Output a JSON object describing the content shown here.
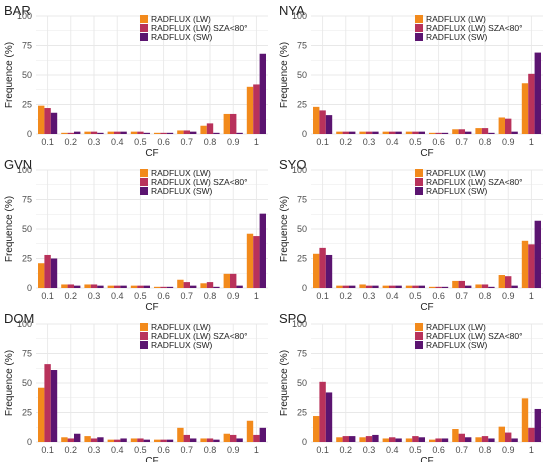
{
  "colors": {
    "lw": "#f28a1c",
    "lw_sza": "#b8325b",
    "sw": "#5b1470",
    "grid": "#e8e8e8",
    "text": "#4d4d4d"
  },
  "chart_data": [
    {
      "type": "bar",
      "title": "BAR",
      "xlabel": "CF",
      "ylabel": "Frequence (%)",
      "ylim": [
        0,
        100
      ],
      "yticks": [
        0,
        25,
        50,
        75,
        100
      ],
      "grid": true,
      "legend_position": "top-right",
      "categories": [
        "0.1",
        "0.2",
        "0.3",
        "0.4",
        "0.5",
        "0.6",
        "0.7",
        "0.8",
        "0.9",
        "1"
      ],
      "series": [
        {
          "name": "RADFLUX (LW)",
          "values": [
            24,
            1,
            2,
            2,
            2,
            1,
            3,
            7,
            17,
            40
          ]
        },
        {
          "name": "RADFLUX (LW) SZA<80°",
          "values": [
            22,
            1,
            2,
            2,
            2,
            1,
            3,
            9,
            17,
            42
          ]
        },
        {
          "name": "RADFLUX (SW)",
          "values": [
            18,
            2,
            1,
            2,
            1,
            1,
            2,
            1,
            1,
            68
          ]
        }
      ]
    },
    {
      "type": "bar",
      "title": "NYA",
      "xlabel": "CF",
      "ylabel": "Frequence (%)",
      "ylim": [
        0,
        100
      ],
      "yticks": [
        0,
        25,
        50,
        75,
        100
      ],
      "grid": true,
      "legend_position": "top-right",
      "categories": [
        "0.1",
        "0.2",
        "0.3",
        "0.4",
        "0.5",
        "0.6",
        "0.7",
        "0.8",
        "0.9",
        "1"
      ],
      "series": [
        {
          "name": "RADFLUX (LW)",
          "values": [
            23,
            2,
            2,
            2,
            2,
            1,
            4,
            5,
            14,
            43
          ]
        },
        {
          "name": "RADFLUX (LW) SZA<80°",
          "values": [
            20,
            2,
            2,
            2,
            2,
            1,
            4,
            5,
            13,
            51
          ]
        },
        {
          "name": "RADFLUX (SW)",
          "values": [
            16,
            2,
            2,
            2,
            2,
            1,
            2,
            1,
            2,
            69
          ]
        }
      ]
    },
    {
      "type": "bar",
      "title": "GVN",
      "xlabel": "CF",
      "ylabel": "Frequence (%)",
      "ylim": [
        0,
        100
      ],
      "yticks": [
        0,
        25,
        50,
        75,
        100
      ],
      "grid": true,
      "legend_position": "top-right",
      "categories": [
        "0.1",
        "0.2",
        "0.3",
        "0.4",
        "0.5",
        "0.6",
        "0.7",
        "0.8",
        "0.9",
        "1"
      ],
      "series": [
        {
          "name": "RADFLUX (LW)",
          "values": [
            21,
            3,
            3,
            2,
            2,
            1,
            7,
            4,
            12,
            46
          ]
        },
        {
          "name": "RADFLUX (LW) SZA<80°",
          "values": [
            28,
            3,
            3,
            2,
            2,
            1,
            5,
            5,
            12,
            44
          ]
        },
        {
          "name": "RADFLUX (SW)",
          "values": [
            25,
            2,
            2,
            2,
            2,
            1,
            2,
            1,
            2,
            63
          ]
        }
      ]
    },
    {
      "type": "bar",
      "title": "SYO",
      "xlabel": "CF",
      "ylabel": "Frequence (%)",
      "ylim": [
        0,
        100
      ],
      "yticks": [
        0,
        25,
        50,
        75,
        100
      ],
      "grid": true,
      "legend_position": "top-right",
      "categories": [
        "0.1",
        "0.2",
        "0.3",
        "0.4",
        "0.5",
        "0.6",
        "0.7",
        "0.8",
        "0.9",
        "1"
      ],
      "series": [
        {
          "name": "RADFLUX (LW)",
          "values": [
            29,
            2,
            3,
            2,
            2,
            1,
            6,
            3,
            11,
            40
          ]
        },
        {
          "name": "RADFLUX (LW) SZA<80°",
          "values": [
            34,
            2,
            2,
            2,
            2,
            1,
            6,
            3,
            10,
            37
          ]
        },
        {
          "name": "RADFLUX (SW)",
          "values": [
            28,
            2,
            2,
            2,
            2,
            1,
            2,
            1,
            2,
            57
          ]
        }
      ]
    },
    {
      "type": "bar",
      "title": "DOM",
      "xlabel": "CF",
      "ylabel": "Frequence (%)",
      "ylim": [
        0,
        100
      ],
      "yticks": [
        0,
        25,
        50,
        75,
        100
      ],
      "grid": true,
      "legend_position": "top-right",
      "categories": [
        "0.1",
        "0.2",
        "0.3",
        "0.4",
        "0.5",
        "0.6",
        "0.7",
        "0.8",
        "0.9",
        "1"
      ],
      "series": [
        {
          "name": "RADFLUX (LW)",
          "values": [
            46,
            4,
            5,
            2,
            3,
            2,
            12,
            3,
            7,
            18
          ]
        },
        {
          "name": "RADFLUX (LW) SZA<80°",
          "values": [
            66,
            3,
            3,
            2,
            3,
            2,
            6,
            3,
            6,
            6
          ]
        },
        {
          "name": "RADFLUX (SW)",
          "values": [
            61,
            7,
            4,
            3,
            2,
            2,
            3,
            2,
            3,
            12
          ]
        }
      ]
    },
    {
      "type": "bar",
      "title": "SPO",
      "xlabel": "CF",
      "ylabel": "Frequence (%)",
      "ylim": [
        0,
        100
      ],
      "yticks": [
        0,
        25,
        50,
        75,
        100
      ],
      "grid": true,
      "legend_position": "top-right",
      "categories": [
        "0.1",
        "0.2",
        "0.3",
        "0.4",
        "0.5",
        "0.6",
        "0.7",
        "0.8",
        "0.9",
        "1"
      ],
      "series": [
        {
          "name": "RADFLUX (LW)",
          "values": [
            22,
            4,
            4,
            3,
            3,
            2,
            11,
            4,
            13,
            37
          ]
        },
        {
          "name": "RADFLUX (LW) SZA<80°",
          "values": [
            51,
            5,
            5,
            4,
            5,
            3,
            7,
            5,
            8,
            12
          ]
        },
        {
          "name": "RADFLUX (SW)",
          "values": [
            42,
            5,
            6,
            3,
            4,
            3,
            4,
            3,
            3,
            28
          ]
        }
      ]
    }
  ]
}
